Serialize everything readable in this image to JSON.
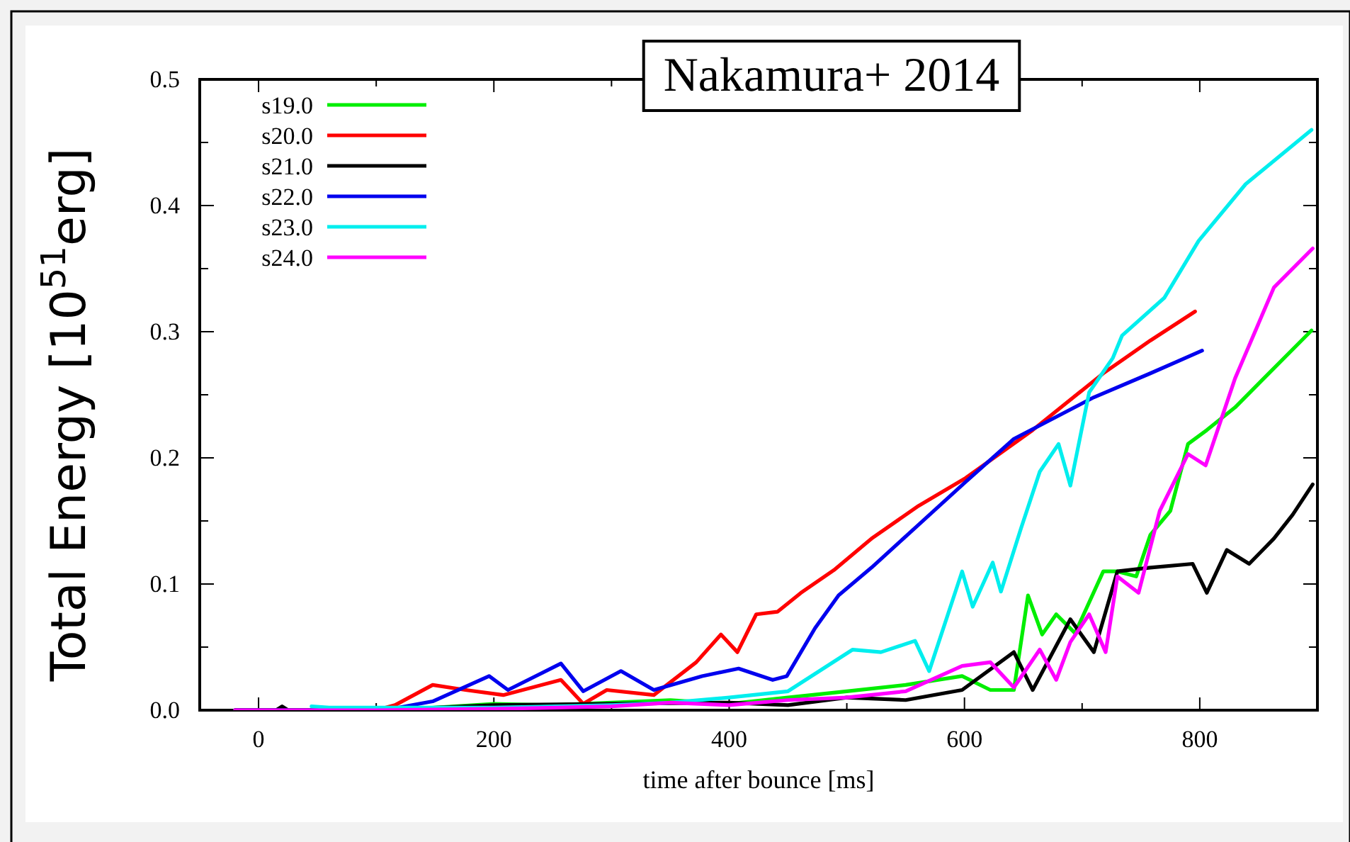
{
  "chart_data": {
    "type": "line",
    "xlabel": "time after bounce [ms]",
    "ylabel": "Total Energy [10$^{51}$erg]",
    "annotations": [
      "Nakamura+ 2014"
    ],
    "xlim": [
      -50,
      900
    ],
    "ylim": [
      0,
      0.5
    ],
    "xticks": [
      0,
      {
        "value": 100,
        "label": null
      },
      200,
      {
        "value": 300,
        "label": null
      },
      400,
      {
        "value": 500,
        "label": null
      },
      600,
      {
        "value": 700,
        "label": null
      },
      800
    ],
    "yticks": [
      {
        "value": 0,
        "label": "0.0"
      },
      {
        "value": 0.05,
        "label": null
      },
      0.1,
      {
        "value": 0.15,
        "label": null
      },
      0.2,
      {
        "value": 0.25,
        "label": null
      },
      0.3,
      {
        "value": 0.35,
        "label": null
      },
      0.4,
      {
        "value": 0.45,
        "label": null
      },
      0.5
    ],
    "legend": "top left",
    "grid": false,
    "marker": "none",
    "line_style": "solid",
    "series": [
      {
        "name": "s19.0",
        "color": "#00ee00",
        "x": [
          -20,
          100,
          150,
          200,
          250,
          300,
          350,
          400,
          450,
          500,
          550,
          598,
          622,
          642,
          654,
          666,
          678,
          694,
          718,
          730,
          746,
          758,
          775,
          790,
          806,
          830,
          863,
          895
        ],
        "values": [
          0,
          0,
          0.002,
          0.005,
          0.004,
          0.006,
          0.008,
          0.005,
          0.01,
          0.015,
          0.02,
          0.027,
          0.016,
          0.016,
          0.091,
          0.06,
          0.076,
          0.061,
          0.11,
          0.11,
          0.106,
          0.139,
          0.158,
          0.211,
          0.222,
          0.24,
          0.271,
          0.301
        ]
      },
      {
        "name": "s20.0",
        "color": "#ff0000",
        "x": [
          -20,
          100,
          116,
          148,
          176,
          208,
          257,
          276,
          296,
          336,
          372,
          393,
          407,
          423,
          441,
          461,
          489,
          521,
          561,
          601,
          658,
          718,
          758,
          796
        ],
        "values": [
          0,
          0,
          0.004,
          0.02,
          0.016,
          0.012,
          0.024,
          0.005,
          0.016,
          0.012,
          0.038,
          0.06,
          0.046,
          0.076,
          0.078,
          0.093,
          0.111,
          0.136,
          0.162,
          0.184,
          0.222,
          0.267,
          0.293,
          0.316
        ]
      },
      {
        "name": "s21.0",
        "color": "#000000",
        "x": [
          -20,
          15,
          20,
          25,
          100,
          200,
          300,
          400,
          450,
          500,
          550,
          598,
          642,
          658,
          690,
          710,
          730,
          758,
          794,
          806,
          823,
          842,
          863,
          879,
          896
        ],
        "values": [
          0,
          0,
          0.003,
          0,
          0,
          0.004,
          0.005,
          0.006,
          0.004,
          0.01,
          0.008,
          0.016,
          0.046,
          0.016,
          0.072,
          0.046,
          0.11,
          0.113,
          0.116,
          0.093,
          0.127,
          0.116,
          0.136,
          0.155,
          0.179
        ]
      },
      {
        "name": "s22.0",
        "color": "#0000ee",
        "x": [
          -20,
          107,
          148,
          196,
          212,
          257,
          276,
          308,
          336,
          377,
          408,
          437,
          449,
          473,
          493,
          521,
          561,
          601,
          642,
          710,
          758,
          802
        ],
        "values": [
          0,
          0,
          0.007,
          0.027,
          0.016,
          0.037,
          0.015,
          0.031,
          0.016,
          0.027,
          0.033,
          0.024,
          0.027,
          0.065,
          0.091,
          0.113,
          0.147,
          0.181,
          0.215,
          0.248,
          0.267,
          0.285
        ]
      },
      {
        "name": "s23.0",
        "color": "#00eeee",
        "x": [
          45,
          60,
          100,
          200,
          300,
          350,
          400,
          450,
          505,
          529,
          558,
          570,
          598,
          607,
          624,
          631,
          648,
          664,
          680,
          690,
          706,
          726,
          734,
          770,
          799,
          839,
          895
        ],
        "values": [
          0.003,
          0.002,
          0.002,
          0.002,
          0.004,
          0.006,
          0.01,
          0.015,
          0.048,
          0.046,
          0.055,
          0.031,
          0.11,
          0.082,
          0.117,
          0.094,
          0.144,
          0.189,
          0.211,
          0.178,
          0.252,
          0.279,
          0.297,
          0.327,
          0.372,
          0.417,
          0.46
        ]
      },
      {
        "name": "s24.0",
        "color": "#ff00ff",
        "x": [
          -20,
          100,
          200,
          300,
          350,
          400,
          450,
          500,
          550,
          598,
          622,
          642,
          664,
          678,
          690,
          706,
          720,
          730,
          748,
          766,
          790,
          805,
          830,
          863,
          896
        ],
        "values": [
          0,
          0,
          0.001,
          0.003,
          0.006,
          0.004,
          0.008,
          0.01,
          0.015,
          0.035,
          0.038,
          0.018,
          0.048,
          0.024,
          0.054,
          0.076,
          0.046,
          0.106,
          0.093,
          0.158,
          0.203,
          0.194,
          0.263,
          0.335,
          0.366
        ]
      }
    ]
  }
}
